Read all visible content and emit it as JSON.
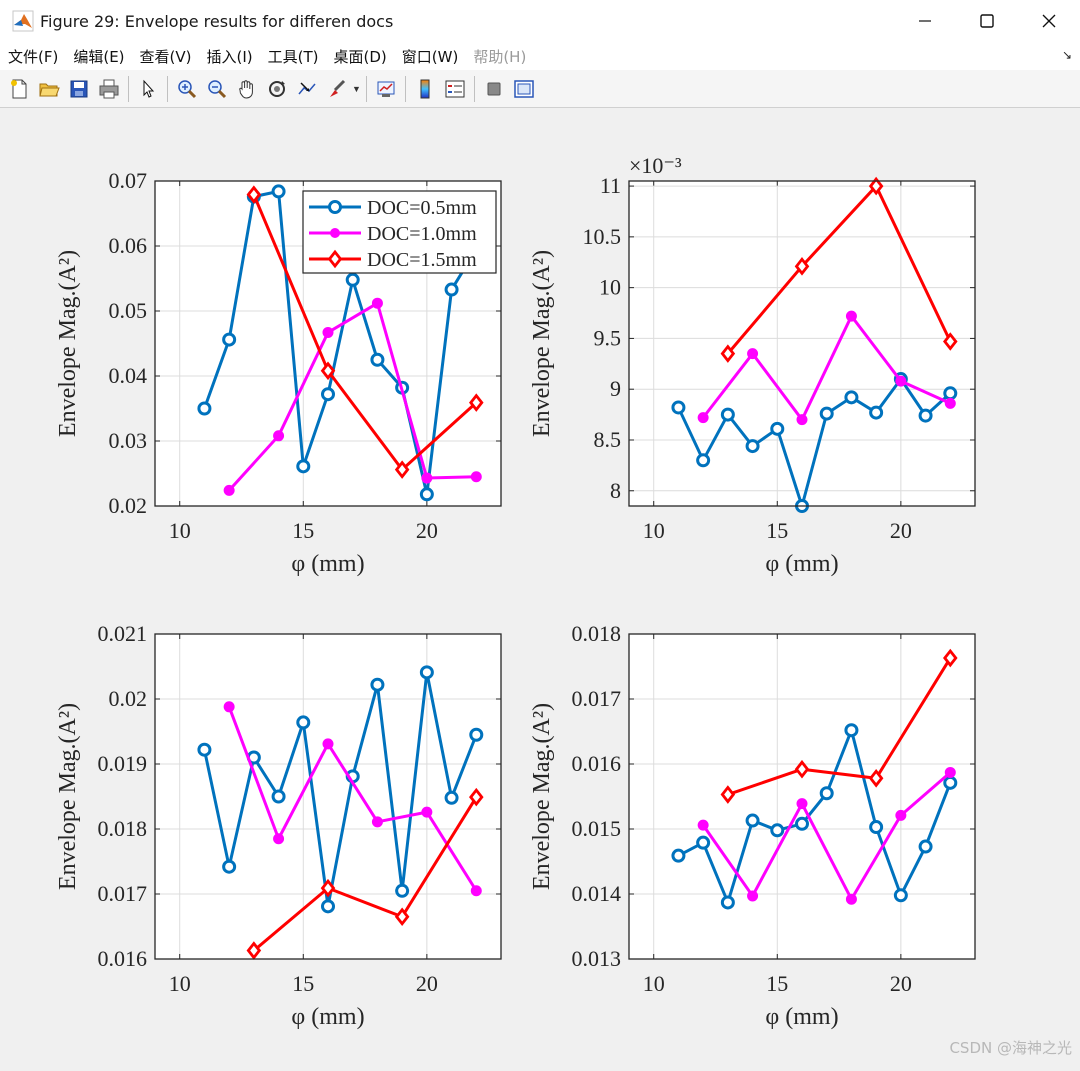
{
  "window": {
    "title": "Figure 29: Envelope results for differen docs",
    "controls": [
      "minimize-icon",
      "maximize-icon",
      "close-icon"
    ]
  },
  "menubar": {
    "items": [
      {
        "label": "文件(F)",
        "enabled": true
      },
      {
        "label": "编辑(E)",
        "enabled": true
      },
      {
        "label": "查看(V)",
        "enabled": true
      },
      {
        "label": "插入(I)",
        "enabled": true
      },
      {
        "label": "工具(T)",
        "enabled": true
      },
      {
        "label": "桌面(D)",
        "enabled": true
      },
      {
        "label": "窗口(W)",
        "enabled": true
      },
      {
        "label": "帮助(H)",
        "enabled": false
      }
    ]
  },
  "toolbar": {
    "icons": [
      "new-figure-icon",
      "open-file-icon",
      "save-icon",
      "print-icon",
      "pointer-icon",
      "zoom-in-icon",
      "zoom-out-icon",
      "pan-hand-icon",
      "rotate-3d-icon",
      "data-cursor-icon",
      "brush-icon",
      "link-plot-icon",
      "colorbar-icon",
      "legend-icon",
      "hide-plot-tools-icon",
      "show-plot-tools-icon"
    ]
  },
  "colors": {
    "series_0_5": "#0072bd",
    "series_1_0": "#ff00ff",
    "series_1_5": "#ff0000"
  },
  "watermark": "CSDN @海神之光",
  "chart_data": [
    {
      "type": "line",
      "ylabel": "Envelope Mag.(A²)",
      "xlabel": "φ (mm)",
      "xlim": [
        9,
        23
      ],
      "ylim": [
        0.02,
        0.07
      ],
      "xticks": [
        "10",
        "15",
        "20"
      ],
      "yticks": [
        "0.02",
        "0.03",
        "0.04",
        "0.05",
        "0.06",
        "0.07"
      ],
      "exponent": "",
      "grid": true,
      "legend": "top-right",
      "series": [
        {
          "name": "DOC=0.5mm",
          "x": [
            11,
            12,
            13,
            14,
            15,
            16,
            17,
            18,
            19,
            20,
            21,
            22
          ],
          "y": [
            0.035,
            0.0456,
            0.0676,
            0.0684,
            0.0261,
            0.0372,
            0.0548,
            0.0425,
            0.0382,
            0.0218,
            0.0533,
            0.0595
          ]
        },
        {
          "name": "DOC=1.0mm",
          "x": [
            12,
            14,
            16,
            18,
            20,
            22
          ],
          "y": [
            0.0224,
            0.0308,
            0.0467,
            0.0512,
            0.0243,
            0.0245
          ]
        },
        {
          "name": "DOC=1.5mm",
          "x": [
            13,
            16,
            19,
            22
          ],
          "y": [
            0.0679,
            0.0408,
            0.0256,
            0.0359
          ]
        }
      ]
    },
    {
      "type": "line",
      "ylabel": "Envelope Mag.(A²)",
      "xlabel": "φ (mm)",
      "xlim": [
        9,
        23
      ],
      "ylim": [
        7.85,
        11.05
      ],
      "xticks": [
        "10",
        "15",
        "20"
      ],
      "yticks": [
        "8",
        "8.5",
        "9",
        "9.5",
        "10",
        "10.5",
        "11"
      ],
      "exponent": "×10⁻³",
      "grid": true,
      "series": [
        {
          "name": "DOC=0.5mm",
          "x": [
            11,
            12,
            13,
            14,
            15,
            16,
            17,
            18,
            19,
            20,
            21,
            22
          ],
          "y": [
            8.82,
            8.3,
            8.75,
            8.44,
            8.61,
            7.85,
            8.76,
            8.92,
            8.77,
            9.1,
            8.74,
            8.96
          ]
        },
        {
          "name": "DOC=1.0mm",
          "x": [
            12,
            14,
            16,
            18,
            20,
            22
          ],
          "y": [
            8.72,
            9.35,
            8.7,
            9.72,
            9.08,
            8.86
          ]
        },
        {
          "name": "DOC=1.5mm",
          "x": [
            13,
            16,
            19,
            22
          ],
          "y": [
            9.35,
            10.21,
            11.0,
            9.47
          ]
        }
      ]
    },
    {
      "type": "line",
      "ylabel": "Envelope Mag.(A²)",
      "xlabel": "φ (mm)",
      "xlim": [
        9,
        23
      ],
      "ylim": [
        0.016,
        0.021
      ],
      "xticks": [
        "10",
        "15",
        "20"
      ],
      "yticks": [
        "0.016",
        "0.017",
        "0.018",
        "0.019",
        "0.02",
        "0.021"
      ],
      "exponent": "",
      "grid": true,
      "series": [
        {
          "name": "DOC=0.5mm",
          "x": [
            11,
            12,
            13,
            14,
            15,
            16,
            17,
            18,
            19,
            20,
            21,
            22
          ],
          "y": [
            0.01922,
            0.01742,
            0.0191,
            0.0185,
            0.01964,
            0.01681,
            0.01881,
            0.02022,
            0.01705,
            0.02041,
            0.01848,
            0.01945
          ]
        },
        {
          "name": "DOC=1.0mm",
          "x": [
            12,
            14,
            16,
            18,
            20,
            22
          ],
          "y": [
            0.01988,
            0.01785,
            0.01931,
            0.01811,
            0.01826,
            0.01705
          ]
        },
        {
          "name": "DOC=1.5mm",
          "x": [
            13,
            16,
            19,
            22
          ],
          "y": [
            0.01613,
            0.01709,
            0.01665,
            0.01849
          ]
        }
      ]
    },
    {
      "type": "line",
      "ylabel": "Envelope Mag.(A²)",
      "xlabel": "φ (mm)",
      "xlim": [
        9,
        23
      ],
      "ylim": [
        0.013,
        0.018
      ],
      "xticks": [
        "10",
        "15",
        "20"
      ],
      "yticks": [
        "0.013",
        "0.014",
        "0.015",
        "0.016",
        "0.017",
        "0.018"
      ],
      "exponent": "",
      "grid": true,
      "series": [
        {
          "name": "DOC=0.5mm",
          "x": [
            11,
            12,
            13,
            14,
            15,
            16,
            17,
            18,
            19,
            20,
            21,
            22
          ],
          "y": [
            0.01459,
            0.01479,
            0.01387,
            0.01513,
            0.01498,
            0.01508,
            0.01555,
            0.01652,
            0.01503,
            0.01398,
            0.01473,
            0.01571
          ]
        },
        {
          "name": "DOC=1.0mm",
          "x": [
            12,
            14,
            16,
            18,
            20,
            22
          ],
          "y": [
            0.01506,
            0.01397,
            0.01539,
            0.01392,
            0.01521,
            0.01587
          ]
        },
        {
          "name": "DOC=1.5mm",
          "x": [
            13,
            16,
            19,
            22
          ],
          "y": [
            0.01553,
            0.01592,
            0.01578,
            0.01763
          ]
        }
      ]
    }
  ]
}
